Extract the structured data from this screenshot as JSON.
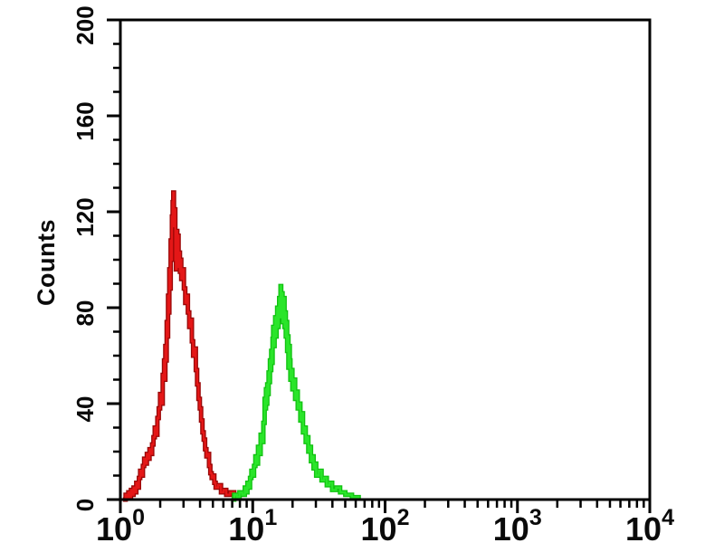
{
  "figure": {
    "background_color": "#ffffff",
    "frame_color": "#000000"
  },
  "chart_data": {
    "type": "line",
    "subtype": "flow-cytometry-histogram-overlay",
    "title": "",
    "xlabel": "",
    "ylabel": "Counts",
    "x_scale": "log10",
    "x_base": 10,
    "x_range_exponents": [
      0,
      4
    ],
    "x_tick_exponents": [
      0,
      1,
      2,
      3,
      4
    ],
    "x_minor_mantissas": [
      2,
      3,
      4,
      5,
      6,
      7,
      8,
      9
    ],
    "ylim": [
      0,
      200
    ],
    "y_ticks": [
      0,
      40,
      80,
      120,
      160,
      200
    ],
    "y_minor_step": 10,
    "grid": false,
    "legend": null,
    "axis_color": "#000000",
    "series": [
      {
        "name": "red-peak",
        "core_color": "#e41717",
        "edge_color": "#9a0606",
        "peak_x_value": 2.5,
        "peak_count": 128,
        "points_log10x_count": [
          [
            0.02,
            0
          ],
          [
            0.04,
            2
          ],
          [
            0.05,
            1
          ],
          [
            0.06,
            3
          ],
          [
            0.07,
            1
          ],
          [
            0.08,
            4
          ],
          [
            0.09,
            2
          ],
          [
            0.1,
            5
          ],
          [
            0.11,
            3
          ],
          [
            0.12,
            7
          ],
          [
            0.13,
            5
          ],
          [
            0.14,
            9
          ],
          [
            0.15,
            12
          ],
          [
            0.16,
            10
          ],
          [
            0.17,
            14
          ],
          [
            0.18,
            17
          ],
          [
            0.19,
            15
          ],
          [
            0.2,
            19
          ],
          [
            0.21,
            17
          ],
          [
            0.22,
            21
          ],
          [
            0.23,
            19
          ],
          [
            0.24,
            23
          ],
          [
            0.25,
            26
          ],
          [
            0.26,
            30
          ],
          [
            0.27,
            27
          ],
          [
            0.28,
            34
          ],
          [
            0.29,
            38
          ],
          [
            0.3,
            44
          ],
          [
            0.31,
            40
          ],
          [
            0.32,
            52
          ],
          [
            0.33,
            58
          ],
          [
            0.335,
            50
          ],
          [
            0.34,
            64
          ],
          [
            0.345,
            58
          ],
          [
            0.35,
            74
          ],
          [
            0.355,
            68
          ],
          [
            0.36,
            85
          ],
          [
            0.365,
            78
          ],
          [
            0.37,
            96
          ],
          [
            0.375,
            88
          ],
          [
            0.38,
            108
          ],
          [
            0.385,
            100
          ],
          [
            0.39,
            118
          ],
          [
            0.395,
            124
          ],
          [
            0.4,
            128
          ],
          [
            0.405,
            114
          ],
          [
            0.41,
            121
          ],
          [
            0.415,
            100
          ],
          [
            0.42,
            96
          ],
          [
            0.425,
            112
          ],
          [
            0.43,
            104
          ],
          [
            0.435,
            110
          ],
          [
            0.44,
            97
          ],
          [
            0.445,
            103
          ],
          [
            0.45,
            95
          ],
          [
            0.455,
            100
          ],
          [
            0.46,
            92
          ],
          [
            0.47,
            96
          ],
          [
            0.48,
            88
          ],
          [
            0.49,
            82
          ],
          [
            0.5,
            85
          ],
          [
            0.51,
            78
          ],
          [
            0.52,
            72
          ],
          [
            0.53,
            75
          ],
          [
            0.54,
            66
          ],
          [
            0.55,
            60
          ],
          [
            0.56,
            63
          ],
          [
            0.57,
            54
          ],
          [
            0.58,
            48
          ],
          [
            0.59,
            42
          ],
          [
            0.6,
            38
          ],
          [
            0.61,
            33
          ],
          [
            0.62,
            28
          ],
          [
            0.63,
            25
          ],
          [
            0.64,
            21
          ],
          [
            0.65,
            18
          ],
          [
            0.66,
            19
          ],
          [
            0.67,
            14
          ],
          [
            0.68,
            11
          ],
          [
            0.69,
            9
          ],
          [
            0.7,
            10
          ],
          [
            0.71,
            7
          ],
          [
            0.72,
            5
          ],
          [
            0.74,
            6
          ],
          [
            0.76,
            3
          ],
          [
            0.78,
            4
          ],
          [
            0.8,
            2
          ],
          [
            0.83,
            3
          ],
          [
            0.86,
            1
          ],
          [
            0.9,
            0
          ]
        ]
      },
      {
        "name": "green-peak",
        "core_color": "#2ae52a",
        "edge_color": "#11c211",
        "peak_x_value": 16,
        "peak_count": 89,
        "points_log10x_count": [
          [
            0.84,
            0
          ],
          [
            0.86,
            2
          ],
          [
            0.88,
            1
          ],
          [
            0.9,
            3
          ],
          [
            0.92,
            2
          ],
          [
            0.94,
            5
          ],
          [
            0.95,
            3
          ],
          [
            0.96,
            7
          ],
          [
            0.97,
            5
          ],
          [
            0.98,
            9
          ],
          [
            0.99,
            12
          ],
          [
            1.0,
            10
          ],
          [
            1.01,
            14
          ],
          [
            1.02,
            18
          ],
          [
            1.03,
            15
          ],
          [
            1.04,
            22
          ],
          [
            1.05,
            19
          ],
          [
            1.06,
            27
          ],
          [
            1.07,
            24
          ],
          [
            1.08,
            32
          ],
          [
            1.09,
            42
          ],
          [
            1.095,
            38
          ],
          [
            1.1,
            46
          ],
          [
            1.105,
            40
          ],
          [
            1.11,
            48
          ],
          [
            1.115,
            44
          ],
          [
            1.12,
            53
          ],
          [
            1.125,
            49
          ],
          [
            1.13,
            58
          ],
          [
            1.135,
            54
          ],
          [
            1.14,
            62
          ],
          [
            1.145,
            57
          ],
          [
            1.15,
            67
          ],
          [
            1.155,
            72
          ],
          [
            1.16,
            64
          ],
          [
            1.165,
            70
          ],
          [
            1.17,
            76
          ],
          [
            1.175,
            68
          ],
          [
            1.18,
            74
          ],
          [
            1.185,
            80
          ],
          [
            1.19,
            72
          ],
          [
            1.195,
            78
          ],
          [
            1.2,
            84
          ],
          [
            1.205,
            76
          ],
          [
            1.21,
            89
          ],
          [
            1.215,
            82
          ],
          [
            1.22,
            86
          ],
          [
            1.225,
            74
          ],
          [
            1.23,
            80
          ],
          [
            1.235,
            84
          ],
          [
            1.24,
            72
          ],
          [
            1.245,
            78
          ],
          [
            1.25,
            68
          ],
          [
            1.255,
            74
          ],
          [
            1.26,
            62
          ],
          [
            1.265,
            68
          ],
          [
            1.27,
            55
          ],
          [
            1.275,
            64
          ],
          [
            1.28,
            58
          ],
          [
            1.285,
            50
          ],
          [
            1.29,
            54
          ],
          [
            1.3,
            46
          ],
          [
            1.31,
            50
          ],
          [
            1.32,
            42
          ],
          [
            1.33,
            45
          ],
          [
            1.34,
            38
          ],
          [
            1.35,
            40
          ],
          [
            1.36,
            33
          ],
          [
            1.37,
            36
          ],
          [
            1.38,
            28
          ],
          [
            1.39,
            30
          ],
          [
            1.4,
            24
          ],
          [
            1.41,
            26
          ],
          [
            1.42,
            20
          ],
          [
            1.43,
            22
          ],
          [
            1.44,
            16
          ],
          [
            1.45,
            18
          ],
          [
            1.46,
            13
          ],
          [
            1.47,
            15
          ],
          [
            1.48,
            10
          ],
          [
            1.5,
            12
          ],
          [
            1.52,
            8
          ],
          [
            1.54,
            9
          ],
          [
            1.56,
            6
          ],
          [
            1.58,
            7
          ],
          [
            1.6,
            4
          ],
          [
            1.63,
            5
          ],
          [
            1.66,
            3
          ],
          [
            1.7,
            2
          ],
          [
            1.75,
            1
          ],
          [
            1.8,
            0
          ]
        ]
      }
    ]
  }
}
